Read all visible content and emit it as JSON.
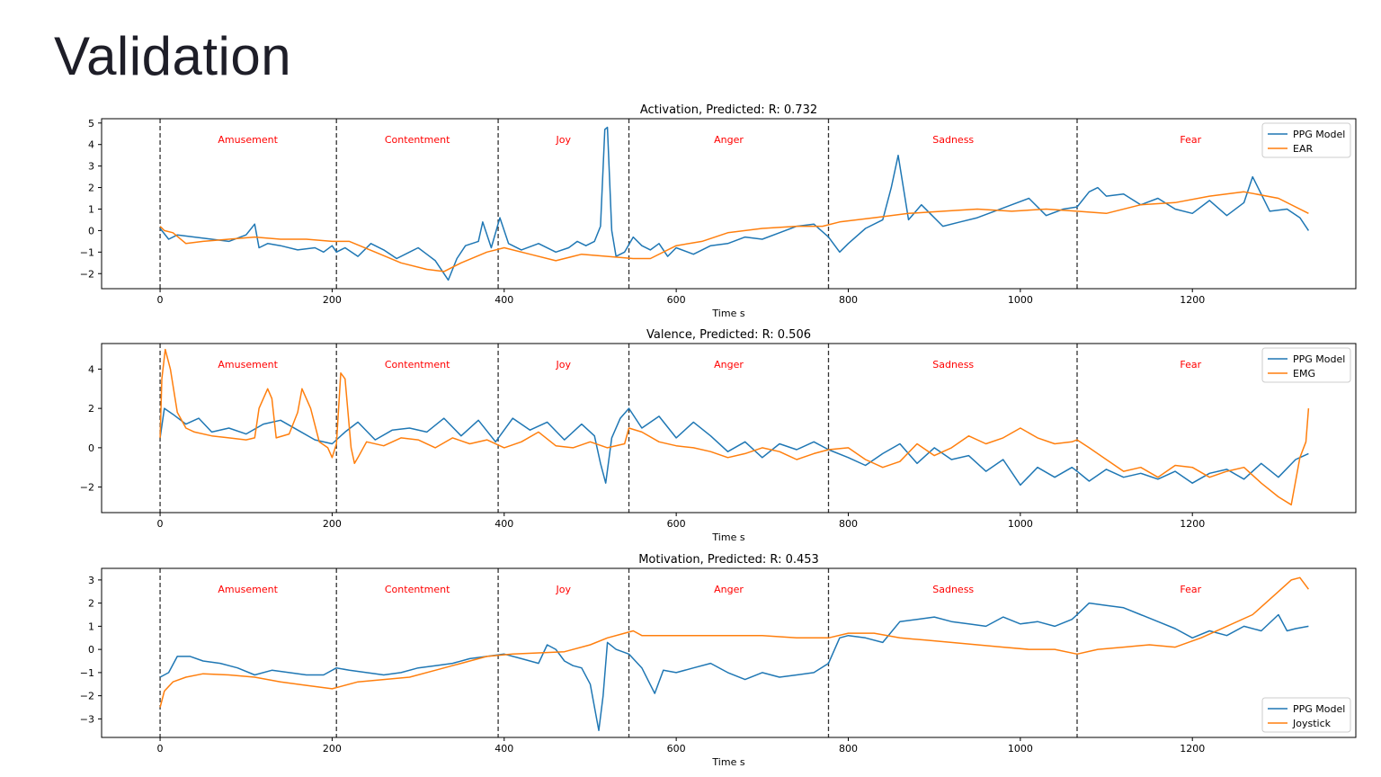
{
  "page": {
    "title": "Validation"
  },
  "colors": {
    "ppg": "#1f77b4",
    "reference": "#ff7f0e",
    "emotion_label": "#ff0000",
    "boundary": "#333333"
  },
  "chart_data": [
    {
      "type": "line",
      "title": "Activation, Predicted: R: 0.732",
      "xlabel": "Time s",
      "xlim": [
        -68,
        1390
      ],
      "ylim": [
        -2.7,
        5.2
      ],
      "xticks": [
        0,
        200,
        400,
        600,
        800,
        1000,
        1200
      ],
      "yticks": [
        -2,
        -1,
        0,
        1,
        2,
        3,
        4,
        5
      ],
      "legend_position": "top-right",
      "boundaries": [
        0,
        205,
        393,
        545,
        777,
        1066
      ],
      "emotions": [
        {
          "name": "Amusement",
          "x": 102
        },
        {
          "name": "Contentment",
          "x": 299
        },
        {
          "name": "Joy",
          "x": 469
        },
        {
          "name": "Anger",
          "x": 661
        },
        {
          "name": "Sadness",
          "x": 922
        },
        {
          "name": "Fear",
          "x": 1198
        }
      ],
      "series": [
        {
          "name": "PPG Model",
          "color_key": "ppg",
          "x": [
            0,
            10,
            20,
            40,
            60,
            80,
            100,
            110,
            115,
            125,
            140,
            160,
            180,
            190,
            200,
            205,
            215,
            230,
            245,
            260,
            275,
            290,
            300,
            310,
            320,
            335,
            345,
            355,
            370,
            375,
            385,
            395,
            405,
            420,
            440,
            460,
            475,
            485,
            495,
            505,
            512,
            517,
            520,
            525,
            530,
            540,
            550,
            560,
            570,
            580,
            590,
            600,
            620,
            640,
            660,
            680,
            700,
            720,
            740,
            760,
            777,
            790,
            800,
            820,
            840,
            850,
            858,
            870,
            885,
            895,
            910,
            930,
            950,
            970,
            990,
            1010,
            1030,
            1050,
            1066,
            1080,
            1090,
            1100,
            1120,
            1140,
            1160,
            1180,
            1200,
            1220,
            1240,
            1260,
            1270,
            1290,
            1310,
            1325,
            1335
          ],
          "y": [
            0.1,
            -0.4,
            -0.2,
            -0.3,
            -0.4,
            -0.5,
            -0.2,
            0.3,
            -0.8,
            -0.6,
            -0.7,
            -0.9,
            -0.8,
            -1.0,
            -0.7,
            -1.0,
            -0.8,
            -1.2,
            -0.6,
            -0.9,
            -1.3,
            -1.0,
            -0.8,
            -1.1,
            -1.4,
            -2.3,
            -1.3,
            -0.7,
            -0.5,
            0.4,
            -0.8,
            0.6,
            -0.6,
            -0.9,
            -0.6,
            -1.0,
            -0.8,
            -0.5,
            -0.7,
            -0.5,
            0.2,
            4.7,
            4.8,
            0.0,
            -1.2,
            -1.0,
            -0.3,
            -0.7,
            -0.9,
            -0.6,
            -1.2,
            -0.8,
            -1.1,
            -0.7,
            -0.6,
            -0.3,
            -0.4,
            -0.1,
            0.2,
            0.3,
            -0.3,
            -1.0,
            -0.6,
            0.1,
            0.5,
            2.0,
            3.5,
            0.5,
            1.2,
            0.8,
            0.2,
            0.4,
            0.6,
            0.9,
            1.2,
            1.5,
            0.7,
            1.0,
            1.1,
            1.8,
            2.0,
            1.6,
            1.7,
            1.2,
            1.5,
            1.0,
            0.8,
            1.4,
            0.7,
            1.3,
            2.5,
            0.9,
            1.0,
            0.6,
            0.0
          ]
        },
        {
          "name": "EAR",
          "color_key": "reference",
          "x": [
            0,
            5,
            15,
            30,
            50,
            80,
            110,
            140,
            170,
            200,
            220,
            250,
            280,
            310,
            330,
            350,
            380,
            400,
            430,
            460,
            490,
            520,
            550,
            570,
            600,
            630,
            660,
            700,
            740,
            770,
            790,
            830,
            870,
            910,
            950,
            990,
            1030,
            1066,
            1100,
            1140,
            1180,
            1220,
            1260,
            1300,
            1335
          ],
          "y": [
            0.2,
            0.0,
            -0.1,
            -0.6,
            -0.5,
            -0.4,
            -0.3,
            -0.4,
            -0.4,
            -0.5,
            -0.5,
            -1.0,
            -1.5,
            -1.8,
            -1.9,
            -1.5,
            -1.0,
            -0.8,
            -1.1,
            -1.4,
            -1.1,
            -1.2,
            -1.3,
            -1.3,
            -0.7,
            -0.5,
            -0.1,
            0.1,
            0.2,
            0.2,
            0.4,
            0.6,
            0.8,
            0.9,
            1.0,
            0.9,
            1.0,
            0.9,
            0.8,
            1.2,
            1.3,
            1.6,
            1.8,
            1.5,
            0.8
          ]
        }
      ]
    },
    {
      "type": "line",
      "title": "Valence, Predicted: R: 0.506",
      "xlabel": "Time s",
      "xlim": [
        -68,
        1390
      ],
      "ylim": [
        -3.3,
        5.3
      ],
      "xticks": [
        0,
        200,
        400,
        600,
        800,
        1000,
        1200
      ],
      "yticks": [
        -2,
        0,
        2,
        4
      ],
      "legend_position": "top-right",
      "boundaries": [
        0,
        205,
        393,
        545,
        777,
        1066
      ],
      "emotions": [
        {
          "name": "Amusement",
          "x": 102
        },
        {
          "name": "Contentment",
          "x": 299
        },
        {
          "name": "Joy",
          "x": 469
        },
        {
          "name": "Anger",
          "x": 661
        },
        {
          "name": "Sadness",
          "x": 922
        },
        {
          "name": "Fear",
          "x": 1198
        }
      ],
      "series": [
        {
          "name": "PPG Model",
          "color_key": "ppg",
          "x": [
            0,
            5,
            15,
            30,
            45,
            60,
            80,
            100,
            120,
            140,
            160,
            180,
            200,
            215,
            230,
            250,
            270,
            290,
            310,
            330,
            350,
            370,
            390,
            410,
            430,
            450,
            470,
            490,
            505,
            512,
            518,
            525,
            535,
            545,
            560,
            580,
            600,
            620,
            640,
            660,
            680,
            700,
            720,
            740,
            760,
            777,
            800,
            820,
            840,
            860,
            880,
            900,
            920,
            940,
            960,
            980,
            1000,
            1020,
            1040,
            1060,
            1066,
            1080,
            1100,
            1120,
            1140,
            1160,
            1180,
            1200,
            1220,
            1240,
            1260,
            1280,
            1300,
            1320,
            1335
          ],
          "y": [
            0.5,
            2.0,
            1.7,
            1.2,
            1.5,
            0.8,
            1.0,
            0.7,
            1.2,
            1.4,
            0.9,
            0.4,
            0.2,
            0.8,
            1.3,
            0.4,
            0.9,
            1.0,
            0.8,
            1.5,
            0.6,
            1.4,
            0.3,
            1.5,
            0.9,
            1.3,
            0.4,
            1.2,
            0.6,
            -0.8,
            -1.8,
            0.5,
            1.5,
            2.0,
            1.0,
            1.6,
            0.5,
            1.3,
            0.6,
            -0.2,
            0.3,
            -0.5,
            0.2,
            -0.1,
            0.3,
            -0.1,
            -0.5,
            -0.9,
            -0.3,
            0.2,
            -0.8,
            0.0,
            -0.6,
            -0.4,
            -1.2,
            -0.6,
            -1.9,
            -1.0,
            -1.5,
            -1.0,
            -1.2,
            -1.7,
            -1.1,
            -1.5,
            -1.3,
            -1.6,
            -1.2,
            -1.8,
            -1.3,
            -1.1,
            -1.6,
            -0.8,
            -1.5,
            -0.6,
            -0.3
          ]
        },
        {
          "name": "EMG",
          "color_key": "reference",
          "x": [
            0,
            2,
            6,
            12,
            20,
            30,
            40,
            60,
            80,
            100,
            110,
            115,
            125,
            130,
            135,
            150,
            160,
            165,
            175,
            185,
            195,
            200,
            205,
            210,
            215,
            222,
            226,
            230,
            240,
            260,
            280,
            300,
            320,
            340,
            360,
            380,
            400,
            420,
            440,
            460,
            480,
            500,
            520,
            540,
            545,
            560,
            580,
            600,
            620,
            640,
            660,
            680,
            700,
            720,
            740,
            760,
            777,
            800,
            820,
            840,
            860,
            880,
            900,
            920,
            940,
            960,
            980,
            1000,
            1020,
            1040,
            1060,
            1066,
            1080,
            1100,
            1120,
            1140,
            1160,
            1180,
            1200,
            1220,
            1240,
            1260,
            1280,
            1300,
            1315,
            1325,
            1332,
            1335
          ],
          "y": [
            0.5,
            3.5,
            5.0,
            4.0,
            1.8,
            1.0,
            0.8,
            0.6,
            0.5,
            0.4,
            0.5,
            2.0,
            3.0,
            2.5,
            0.5,
            0.7,
            1.8,
            3.0,
            2.0,
            0.3,
            0.0,
            -0.5,
            0.2,
            3.8,
            3.5,
            0.0,
            -0.8,
            -0.5,
            0.3,
            0.1,
            0.5,
            0.4,
            0.0,
            0.5,
            0.2,
            0.4,
            0.0,
            0.3,
            0.8,
            0.1,
            0.0,
            0.3,
            0.0,
            0.2,
            1.0,
            0.8,
            0.3,
            0.1,
            0.0,
            -0.2,
            -0.5,
            -0.3,
            0.0,
            -0.2,
            -0.6,
            -0.3,
            -0.1,
            0.0,
            -0.6,
            -1.0,
            -0.7,
            0.2,
            -0.4,
            0.0,
            0.6,
            0.2,
            0.5,
            1.0,
            0.5,
            0.2,
            0.3,
            0.4,
            0.0,
            -0.6,
            -1.2,
            -1.0,
            -1.5,
            -0.9,
            -1.0,
            -1.5,
            -1.2,
            -1.0,
            -1.8,
            -2.5,
            -2.9,
            -0.5,
            0.3,
            2.0
          ]
        }
      ]
    },
    {
      "type": "line",
      "title": "Motivation, Predicted: R: 0.453",
      "xlabel": "Time s",
      "xlim": [
        -68,
        1390
      ],
      "ylim": [
        -3.8,
        3.5
      ],
      "xticks": [
        0,
        200,
        400,
        600,
        800,
        1000,
        1200
      ],
      "yticks": [
        -3,
        -2,
        -1,
        0,
        1,
        2,
        3
      ],
      "legend_position": "bottom-right",
      "boundaries": [
        0,
        205,
        393,
        545,
        777,
        1066
      ],
      "emotions": [
        {
          "name": "Amusement",
          "x": 102
        },
        {
          "name": "Contentment",
          "x": 299
        },
        {
          "name": "Joy",
          "x": 469
        },
        {
          "name": "Anger",
          "x": 661
        },
        {
          "name": "Sadness",
          "x": 922
        },
        {
          "name": "Fear",
          "x": 1198
        }
      ],
      "series": [
        {
          "name": "PPG Model",
          "color_key": "ppg",
          "x": [
            0,
            10,
            20,
            35,
            50,
            70,
            90,
            110,
            130,
            150,
            170,
            190,
            205,
            220,
            240,
            260,
            280,
            300,
            320,
            340,
            360,
            380,
            400,
            420,
            440,
            450,
            460,
            470,
            480,
            490,
            500,
            510,
            515,
            520,
            530,
            545,
            560,
            575,
            585,
            600,
            620,
            640,
            660,
            680,
            700,
            720,
            740,
            760,
            777,
            790,
            800,
            820,
            840,
            860,
            880,
            900,
            920,
            940,
            960,
            980,
            1000,
            1020,
            1040,
            1060,
            1066,
            1080,
            1100,
            1120,
            1140,
            1160,
            1180,
            1200,
            1220,
            1240,
            1260,
            1280,
            1300,
            1310,
            1320,
            1335
          ],
          "y": [
            -1.2,
            -1.0,
            -0.3,
            -0.3,
            -0.5,
            -0.6,
            -0.8,
            -1.1,
            -0.9,
            -1.0,
            -1.1,
            -1.1,
            -0.8,
            -0.9,
            -1.0,
            -1.1,
            -1.0,
            -0.8,
            -0.7,
            -0.6,
            -0.4,
            -0.3,
            -0.2,
            -0.4,
            -0.6,
            0.2,
            0.0,
            -0.5,
            -0.7,
            -0.8,
            -1.5,
            -3.5,
            -2.0,
            0.3,
            0.0,
            -0.2,
            -0.8,
            -1.9,
            -0.9,
            -1.0,
            -0.8,
            -0.6,
            -1.0,
            -1.3,
            -1.0,
            -1.2,
            -1.1,
            -1.0,
            -0.6,
            0.5,
            0.6,
            0.5,
            0.3,
            1.2,
            1.3,
            1.4,
            1.2,
            1.1,
            1.0,
            1.4,
            1.1,
            1.2,
            1.0,
            1.3,
            1.5,
            2.0,
            1.9,
            1.8,
            1.5,
            1.2,
            0.9,
            0.5,
            0.8,
            0.6,
            1.0,
            0.8,
            1.5,
            0.8,
            0.9,
            1.0
          ]
        },
        {
          "name": "Joystick",
          "color_key": "reference",
          "x": [
            0,
            5,
            15,
            30,
            50,
            80,
            110,
            140,
            170,
            200,
            210,
            230,
            260,
            290,
            320,
            350,
            380,
            410,
            440,
            470,
            500,
            520,
            540,
            550,
            560,
            580,
            610,
            640,
            670,
            700,
            740,
            777,
            800,
            830,
            860,
            890,
            920,
            950,
            980,
            1010,
            1040,
            1066,
            1090,
            1120,
            1150,
            1180,
            1210,
            1240,
            1270,
            1300,
            1315,
            1325,
            1335
          ],
          "y": [
            -2.5,
            -1.8,
            -1.4,
            -1.2,
            -1.05,
            -1.1,
            -1.2,
            -1.4,
            -1.55,
            -1.7,
            -1.6,
            -1.4,
            -1.3,
            -1.2,
            -0.9,
            -0.6,
            -0.3,
            -0.2,
            -0.15,
            -0.1,
            0.2,
            0.5,
            0.7,
            0.8,
            0.6,
            0.6,
            0.6,
            0.6,
            0.6,
            0.6,
            0.5,
            0.5,
            0.7,
            0.7,
            0.5,
            0.4,
            0.3,
            0.2,
            0.1,
            0.0,
            0.0,
            -0.2,
            0.0,
            0.1,
            0.2,
            0.1,
            0.5,
            1.0,
            1.5,
            2.5,
            3.0,
            3.1,
            2.6
          ]
        }
      ]
    }
  ]
}
